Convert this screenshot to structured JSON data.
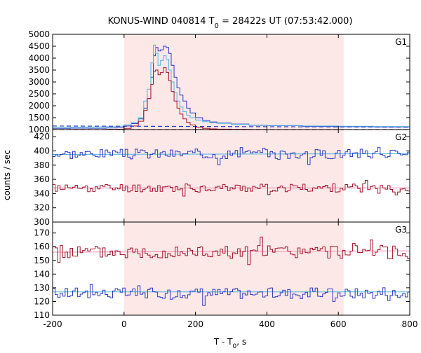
{
  "title": {
    "prefix": "KONUS-WIND 040814 T",
    "sub": "0",
    "suffix": " = 28422s UT (07:53:42.000)"
  },
  "xlabel": {
    "prefix": "T - T",
    "sub": "0",
    "suffix": ", s"
  },
  "ylabel": "counts / sec",
  "chart_data": {
    "type": "line",
    "x_range": [
      -200,
      800
    ],
    "x_ticks": [
      -200,
      0,
      200,
      400,
      600,
      800
    ],
    "shaded_interval": [
      0,
      615
    ],
    "colors": {
      "shade": "#fde8e8",
      "blue": "#2b3bbd",
      "red": "#a3142a",
      "cyan": "#4fb4e6",
      "pink": "#f08cb4",
      "grid": "#000000"
    },
    "panels": [
      {
        "label": "G1",
        "ylim": [
          1000,
          5000
        ],
        "yticks": [
          1000,
          1500,
          2000,
          2500,
          3000,
          3500,
          4000,
          4500,
          5000
        ],
        "series": [
          {
            "color": "blue",
            "step": true,
            "x": [
              -200,
              -150,
              -100,
              -50,
              -20,
              0,
              20,
              40,
              55,
              65,
              75,
              82,
              88,
              95,
              102,
              110,
              118,
              125,
              132,
              140,
              148,
              156,
              165,
              175,
              185,
              200,
              220,
              240,
              260,
              300,
              350,
              400,
              500,
              600,
              700,
              800
            ],
            "y": [
              1050,
              1060,
              1055,
              1065,
              1080,
              1150,
              1250,
              1450,
              1900,
              2300,
              3200,
              4100,
              4450,
              4300,
              4350,
              4500,
              4450,
              4200,
              3700,
              3200,
              2750,
              2450,
              2200,
              1900,
              1700,
              1500,
              1380,
              1320,
              1280,
              1230,
              1180,
              1160,
              1130,
              1120,
              1110,
              1110
            ]
          },
          {
            "color": "cyan",
            "step": true,
            "x": [
              -200,
              -150,
              -100,
              -50,
              -20,
              0,
              20,
              40,
              55,
              65,
              75,
              82,
              88,
              95,
              102,
              110,
              118,
              125,
              132,
              140,
              148,
              156,
              165,
              175,
              185,
              200,
              220,
              240,
              260,
              300,
              350,
              400,
              500,
              600,
              700,
              800
            ],
            "y": [
              1100,
              1105,
              1110,
              1120,
              1140,
              1200,
              1300,
              1500,
              2200,
              2700,
              3800,
              4550,
              4200,
              3700,
              3900,
              4100,
              3950,
              3500,
              3000,
              2550,
              2200,
              1950,
              1750,
              1600,
              1500,
              1400,
              1330,
              1290,
              1260,
              1220,
              1190,
              1170,
              1150,
              1140,
              1130,
              1130
            ]
          },
          {
            "color": "red",
            "step": true,
            "x": [
              -200,
              -150,
              -100,
              -50,
              -20,
              0,
              20,
              40,
              55,
              65,
              75,
              82,
              88,
              95,
              102,
              110,
              118,
              125,
              132,
              140,
              148,
              156,
              165,
              175,
              185,
              200,
              220,
              240,
              260,
              300,
              350,
              400,
              500,
              600,
              700,
              800
            ],
            "y": [
              1000,
              1005,
              1000,
              1010,
              1020,
              1050,
              1150,
              1350,
              1800,
              2300,
              2900,
              3450,
              3500,
              3300,
              3400,
              3600,
              3400,
              3050,
              2600,
              2200,
              1900,
              1650,
              1450,
              1300,
              1200,
              1100,
              1050,
              1030,
              1020,
              1010,
              1005,
              1000,
              1000,
              1000,
              1000,
              1000
            ]
          },
          {
            "color": "blue",
            "dashed": true,
            "x": [
              -200,
              800
            ],
            "y": [
              1150,
              1100
            ]
          },
          {
            "color": "red",
            "dashed": true,
            "x": [
              -200,
              800
            ],
            "y": [
              1000,
              1000
            ]
          }
        ]
      },
      {
        "label": "G2",
        "ylim": [
          300,
          430
        ],
        "yticks": [
          300,
          320,
          340,
          360,
          380,
          400,
          420
        ],
        "fits": [
          {
            "color": "cyan",
            "x": [
              -200,
              800
            ],
            "y": [
              395,
              396
            ]
          },
          {
            "color": "pink",
            "x": [
              -200,
              800
            ],
            "y": [
              348,
              348
            ]
          }
        ],
        "noisy": [
          {
            "color": "blue",
            "mean": 396,
            "amp": 7,
            "seed": 3
          },
          {
            "color": "red",
            "mean": 348,
            "amp": 6,
            "seed": 11
          }
        ]
      },
      {
        "label": "G3",
        "ylim": [
          110,
          178
        ],
        "yticks": [
          110,
          120,
          130,
          140,
          150,
          160,
          170
        ],
        "fits": [
          {
            "color": "pink",
            "x": [
              -200,
              800
            ],
            "y": [
              156,
              157
            ]
          },
          {
            "color": "cyan",
            "x": [
              -200,
              800
            ],
            "y": [
              127,
              127
            ]
          }
        ],
        "noisy": [
          {
            "color": "red",
            "mean": 156,
            "amp": 5,
            "seed": 5
          },
          {
            "color": "blue",
            "mean": 126,
            "amp": 4,
            "seed": 17
          }
        ]
      }
    ]
  }
}
